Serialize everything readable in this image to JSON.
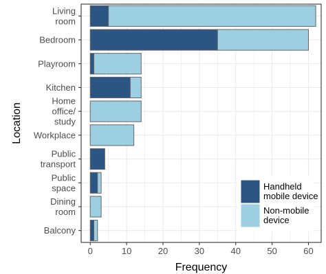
{
  "chart_data": {
    "type": "bar",
    "orientation": "horizontal",
    "stacked": true,
    "categories": [
      [
        "Living",
        "room"
      ],
      [
        "Bedroom"
      ],
      [
        "Playroom"
      ],
      [
        "Kitchen"
      ],
      [
        "Home",
        "office/",
        "study"
      ],
      [
        "Workplace"
      ],
      [
        "Public",
        "transport"
      ],
      [
        "Public",
        "space"
      ],
      [
        "Dining",
        "room"
      ],
      [
        "Balcony"
      ]
    ],
    "series": [
      {
        "name": "Handheld mobile device",
        "legend_lines": [
          "Handheld",
          "mobile device"
        ],
        "color": "#2b5582",
        "values": [
          5,
          35,
          1,
          11,
          0,
          0,
          4,
          2,
          0,
          1
        ]
      },
      {
        "name": "Non-mobile device",
        "legend_lines": [
          "Non-mobile",
          "device"
        ],
        "color": "#9dcfe3",
        "values": [
          57,
          25,
          13,
          3,
          14,
          12,
          0,
          1,
          3,
          1
        ]
      }
    ],
    "xlabel": "Frequency",
    "ylabel": "Location",
    "xlim": [
      -2.5,
      63.5
    ],
    "xticks": [
      0,
      10,
      20,
      30,
      40,
      50,
      60
    ],
    "grid": true,
    "legend_position": "bottom-right",
    "bar_outline_color": "#666666",
    "grid_color": "#ebebeb",
    "panel_border_color": "#333333"
  }
}
